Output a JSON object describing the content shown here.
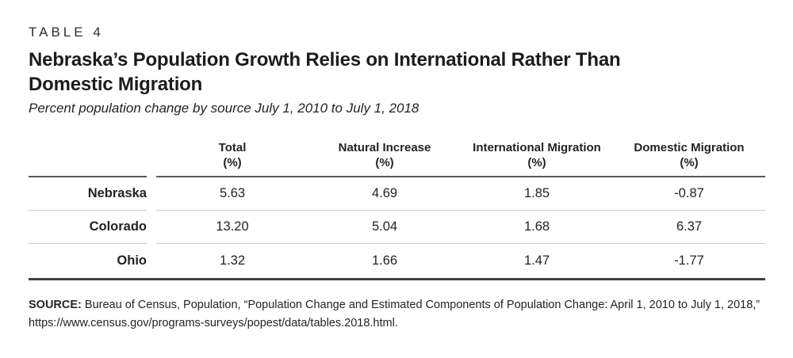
{
  "table_label": "TABLE 4",
  "title_lines": [
    "Nebraska’s Population Growth Relies on International Rather Than",
    "Domestic Migration"
  ],
  "subtitle": "Percent population change by source July 1, 2010 to July 1, 2018",
  "table": {
    "columns": [
      {
        "name": "Total",
        "unit": "(%)"
      },
      {
        "name": "Natural Increase",
        "unit": "(%)"
      },
      {
        "name": "International Migration",
        "unit": "(%)"
      },
      {
        "name": "Domestic Migration",
        "unit": "(%)"
      }
    ],
    "rows": [
      {
        "label": "Nebraska",
        "values": [
          "5.63",
          "4.69",
          "1.85",
          "-0.87"
        ]
      },
      {
        "label": "Colorado",
        "values": [
          "13.20",
          "5.04",
          "1.68",
          "6.37"
        ]
      },
      {
        "label": "Ohio",
        "values": [
          "1.32",
          "1.66",
          "1.47",
          "-1.77"
        ]
      }
    ]
  },
  "source": {
    "label": "SOURCE:",
    "text": " Bureau of Census, Population, “Population Change and Estimated Components of Population Change: April 1, 2010 to July 1, 2018,” https://www.census.gov/programs-surveys/popest/data/tables.2018.html."
  },
  "chart_data": {
    "type": "table",
    "title": "Nebraska's Population Growth Relies on International Rather Than Domestic Migration",
    "subtitle": "Percent population change by source July 1, 2010 to July 1, 2018",
    "table_number": "TABLE 4",
    "categories": [
      "Total (%)",
      "Natural Increase (%)",
      "International Migration (%)",
      "Domestic Migration (%)"
    ],
    "series": [
      {
        "name": "Nebraska",
        "values": [
          5.63,
          4.69,
          1.85,
          -0.87
        ]
      },
      {
        "name": "Colorado",
        "values": [
          13.2,
          5.04,
          1.68,
          6.37
        ]
      },
      {
        "name": "Ohio",
        "values": [
          1.32,
          1.66,
          1.47,
          -1.77
        ]
      }
    ],
    "source": "Bureau of Census, Population, “Population Change and Estimated Components of Population Change: April 1, 2010 to July 1, 2018,” https://www.census.gov/programs-surveys/popest/data/tables.2018.html."
  }
}
